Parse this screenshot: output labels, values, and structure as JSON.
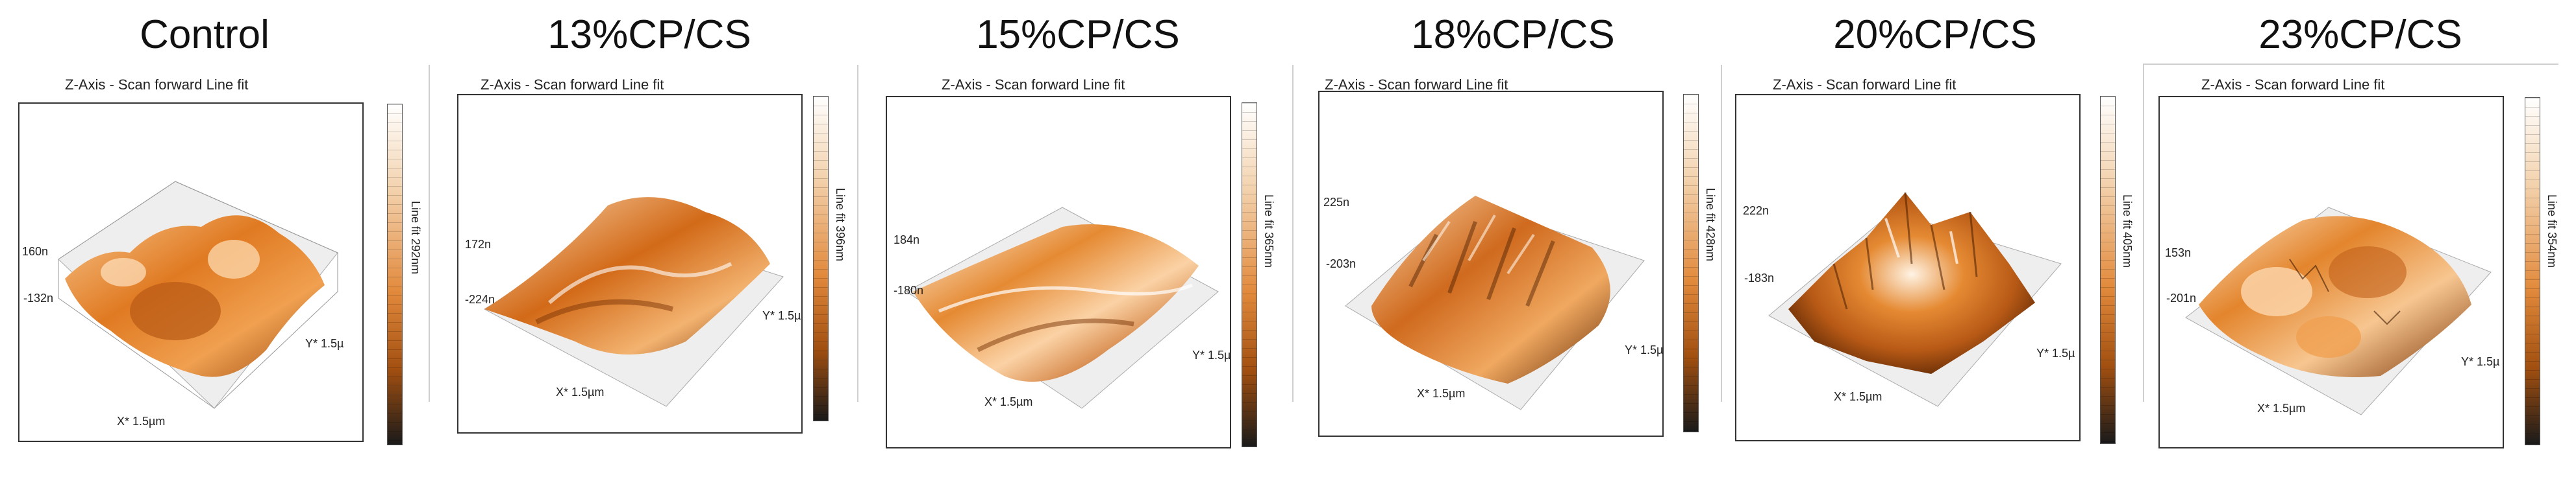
{
  "panels": [
    {
      "title": "Control",
      "header": "Z-Axis - Scan forward   Line fit",
      "z_top": "160n",
      "z_bottom": "-132n",
      "x_axis": "X* 1.5µm",
      "y_axis": "Y* 1.5µ",
      "colorbar": "Line fit 292nm"
    },
    {
      "title": "13%CP/CS",
      "header": "Z-Axis - Scan forward   Line fit",
      "z_top": "172n",
      "z_bottom": "-224n",
      "x_axis": "X* 1.5µm",
      "y_axis": "Y* 1.5µ",
      "colorbar": "Line fit 396nm"
    },
    {
      "title": "15%CP/CS",
      "header": "Z-Axis - Scan forward   Line fit",
      "z_top": "184n",
      "z_bottom": "-180n",
      "x_axis": "X* 1.5µm",
      "y_axis": "Y* 1.5µ",
      "colorbar": "Line fit 365nm"
    },
    {
      "title": "18%CP/CS",
      "header": "Z-Axis - Scan forward   Line fit",
      "z_top": "225n",
      "z_bottom": "-203n",
      "x_axis": "X* 1.5µm",
      "y_axis": "Y* 1.5µ",
      "colorbar": "Line fit 428nm"
    },
    {
      "title": "20%CP/CS",
      "header": "Z-Axis - Scan forward   Line fit",
      "z_top": "222n",
      "z_bottom": "-183n",
      "x_axis": "X* 1.5µm",
      "y_axis": "Y* 1.5µ",
      "colorbar": "Line fit 405nm"
    },
    {
      "title": "23%CP/CS",
      "header": "Z-Axis - Scan forward   Line fit",
      "z_top": "153n",
      "z_bottom": "-201n",
      "x_axis": "X* 1.5µm",
      "y_axis": "Y* 1.5µ",
      "colorbar": "Line fit 354nm"
    }
  ],
  "colors": {
    "surface_light": "#f6c48f",
    "surface_mid": "#e07a22",
    "surface_dark": "#8a3d08",
    "highlight": "#ffffff",
    "grid": "#bbbbbb"
  }
}
